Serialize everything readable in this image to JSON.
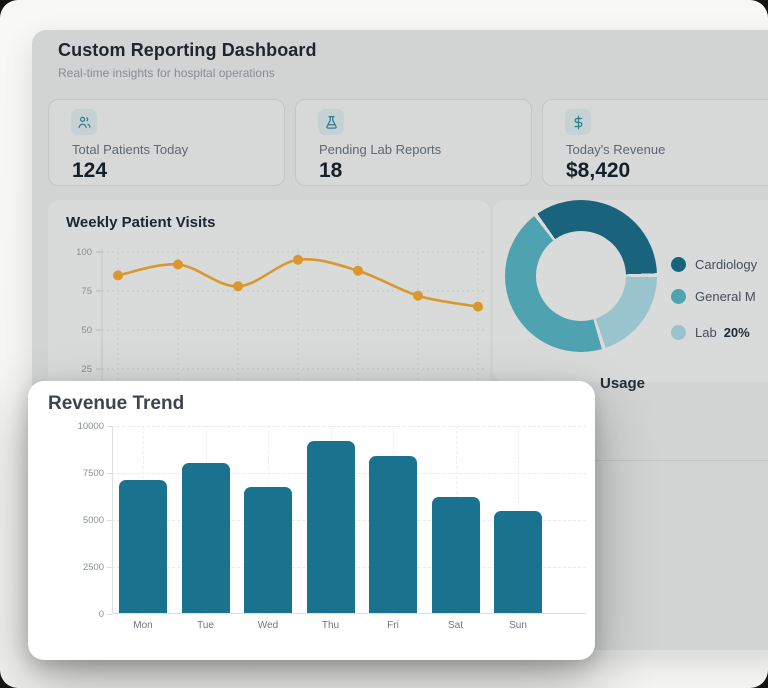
{
  "header": {
    "title": "Custom Reporting Dashboard",
    "subtitle": "Real-time insights for hospital operations"
  },
  "stats": [
    {
      "icon": "users-icon",
      "label": "Total Patients Today",
      "value": "124"
    },
    {
      "icon": "flask-icon",
      "label": "Pending Lab Reports",
      "value": "18"
    },
    {
      "icon": "dollar-icon",
      "label": "Today's Revenue",
      "value": "$8,420"
    }
  ],
  "usage_section": {
    "visible_heading_fragment": "Usage"
  },
  "modal": {
    "title": "Revenue Trend"
  },
  "colors": {
    "accent_orange": "#d9982f",
    "accent_teal": "#19738f",
    "donut_cardiology": "#1a637d",
    "donut_general": "#4fa2af",
    "donut_lab": "#9ac4cd",
    "icon_teal": "#2e7d90",
    "dim_background": "#d2d4d4"
  },
  "chart_data": [
    {
      "type": "line",
      "title": "Weekly Patient Visits",
      "values": [
        85,
        92,
        78,
        95,
        88,
        72,
        65
      ],
      "yticks": [
        100,
        75,
        50,
        25
      ],
      "ylim": [
        0,
        100
      ],
      "grid": true,
      "line_color": "#d9982f",
      "note_x_axis": "x labels hidden behind modal"
    },
    {
      "type": "pie",
      "donut": true,
      "segments_clockwise_from_top_left": [
        {
          "label": "Cardiology",
          "value": 35,
          "color": "#1a637d"
        },
        {
          "label": "Lab",
          "value": 20,
          "color": "#9ac4cd"
        },
        {
          "label": "General M",
          "value": 45,
          "color": "#4fa2af"
        }
      ],
      "legend": [
        {
          "label": "Cardiology",
          "color": "#1a637d"
        },
        {
          "label": "General M",
          "color": "#4fa2af"
        },
        {
          "label": "Lab",
          "color": "#9ac4cd",
          "pct": "20%"
        }
      ],
      "legend_position": "right"
    },
    {
      "type": "bar",
      "title": "Revenue Trend",
      "categories": [
        "Mon",
        "Tue",
        "Wed",
        "Thu",
        "Fri",
        "Sat",
        "Sun"
      ],
      "values": [
        7100,
        8000,
        6700,
        9150,
        8350,
        6150,
        5450
      ],
      "yticks": [
        10000,
        7500,
        5000,
        2500,
        0
      ],
      "ylim": [
        0,
        10000
      ],
      "grid": true,
      "bar_color": "#19738f"
    }
  ]
}
